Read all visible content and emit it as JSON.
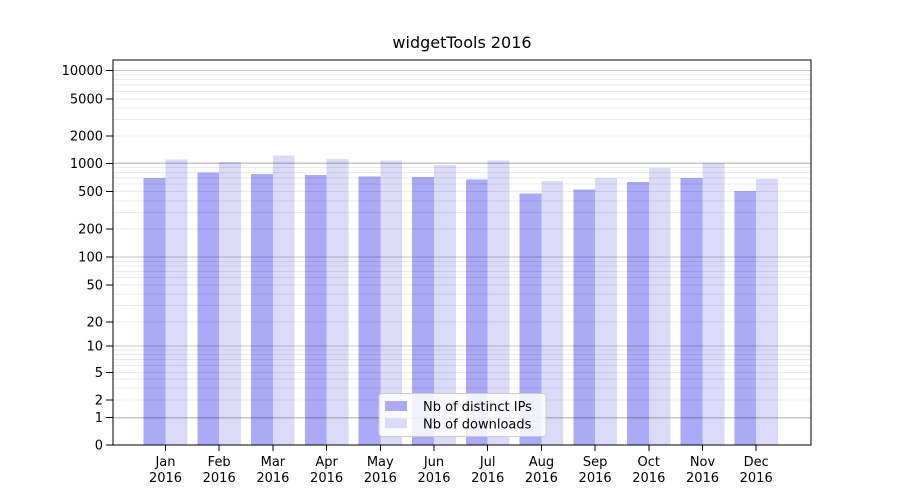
{
  "chart_data": {
    "type": "bar",
    "title": "widgetTools 2016",
    "categories": [
      "Jan",
      "Feb",
      "Mar",
      "Apr",
      "May",
      "Jun",
      "Jul",
      "Aug",
      "Sep",
      "Oct",
      "Nov",
      "Dec"
    ],
    "category_year_line": "2016",
    "series": [
      {
        "name": "Nb of distinct IPs",
        "color": "#aaaaf7",
        "values": [
          700,
          800,
          770,
          755,
          725,
          715,
          670,
          480,
          530,
          630,
          700,
          510
        ]
      },
      {
        "name": "Nb of downloads",
        "color": "#dbdbf9",
        "values": [
          1100,
          1030,
          1220,
          1110,
          1080,
          960,
          1080,
          650,
          700,
          890,
          1010,
          680
        ]
      }
    ],
    "xlabel": "",
    "ylabel": "",
    "y_scale": "log-with-zero-baseline",
    "y_ticks": [
      0,
      1,
      2,
      5,
      10,
      20,
      50,
      100,
      200,
      500,
      1000,
      2000,
      5000,
      10000
    ],
    "ylim": [
      0,
      14000
    ],
    "grid": "major-and-minor-horizontal",
    "legend_position": "lower-center",
    "colors": {
      "major_grid": "rgba(0,0,0,0.22)",
      "minor_grid": "rgba(0,0,0,0.08)",
      "axis": "#000000",
      "legend_border": "#cccccc",
      "legend_background": "rgba(255,255,255,0.85)",
      "background": "#ffffff"
    }
  }
}
